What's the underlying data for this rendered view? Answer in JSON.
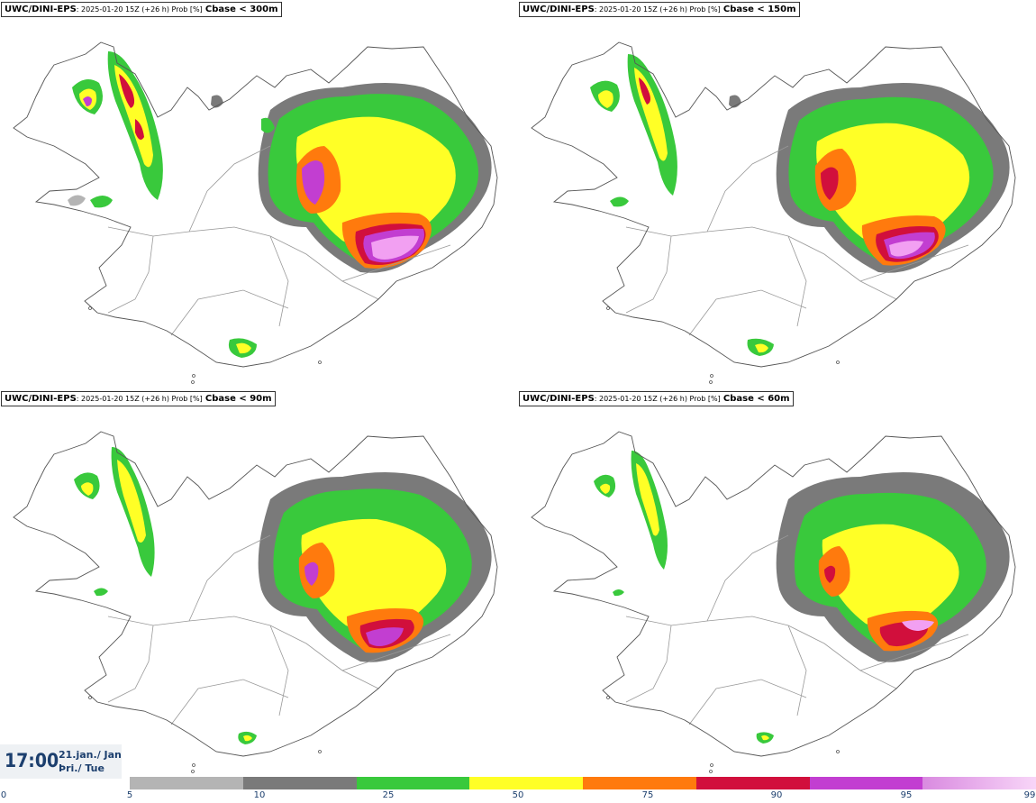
{
  "panels": [
    {
      "source": "UWC/DINI-EPS",
      "meta": ": 2025-01-20 15Z (+26 h) Prob [%]",
      "variable": "Cbase < 300m"
    },
    {
      "source": "UWC/DINI-EPS",
      "meta": ": 2025-01-20 15Z (+26 h) Prob [%]",
      "variable": "Cbase < 150m"
    },
    {
      "source": "UWC/DINI-EPS",
      "meta": ": 2025-01-20 15Z (+26 h) Prob [%]",
      "variable": "Cbase < 90m"
    },
    {
      "source": "UWC/DINI-EPS",
      "meta": ": 2025-01-20 15Z (+26 h) Prob [%]",
      "variable": "Cbase < 60m"
    }
  ],
  "valid_time": {
    "time": "17:00",
    "date": "21.jan./ Jan",
    "weekday": "Þri./ Tue"
  },
  "colorbar": {
    "ticks": [
      "0",
      "5",
      "10",
      "25",
      "50",
      "75",
      "90",
      "95",
      "99"
    ],
    "colors": [
      "#b4b4b4",
      "#7a7a7a",
      "#39c93c",
      "#ffff26",
      "#ff7a0d",
      "#d10f3c",
      "#c23ed1",
      "#f2a0f2"
    ]
  },
  "map_colors": {
    "coast": "#555555",
    "roads": "#999999",
    "gray_light": "#b4b4b4",
    "gray_dark": "#7a7a7a",
    "green": "#39c93c",
    "yellow": "#ffff26",
    "orange": "#ff7a0d",
    "red": "#d10f3c",
    "magenta": "#c23ed1",
    "pink": "#f2a0f2"
  }
}
